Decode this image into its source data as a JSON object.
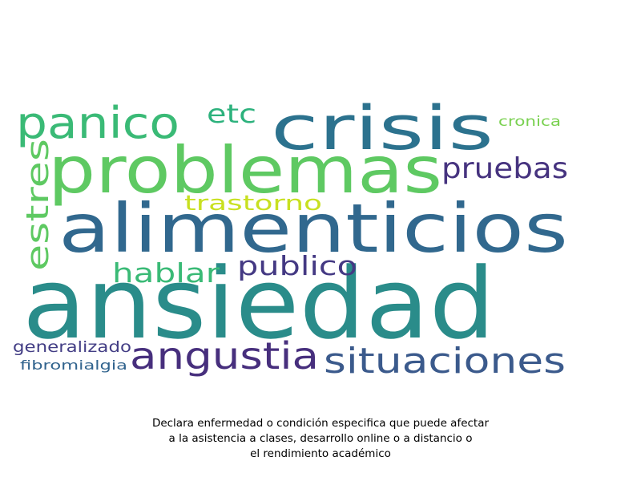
{
  "words": [
    {
      "text": "ansiedad",
      "color": "#2a8c8a"
    },
    {
      "text": "alimenticios",
      "color": "#31688e"
    },
    {
      "text": "problemas",
      "color": "#5ec962"
    },
    {
      "text": "crisis",
      "color": "#2c728e"
    },
    {
      "text": "panico",
      "color": "#3aba76"
    },
    {
      "text": "angustia",
      "color": "#472f7d"
    },
    {
      "text": "situaciones",
      "color": "#3b5a8c"
    },
    {
      "text": "pruebas",
      "color": "#46337f"
    },
    {
      "text": "publico",
      "color": "#443983"
    },
    {
      "text": "hablar",
      "color": "#3aba76"
    },
    {
      "text": "estres",
      "color": "#5ec962"
    },
    {
      "text": "trastorno",
      "color": "#c8e020"
    },
    {
      "text": "etc",
      "color": "#2db27d"
    },
    {
      "text": "cronica",
      "color": "#7ad151"
    },
    {
      "text": "generalizado",
      "color": "#433e85"
    },
    {
      "text": "fibromialgia",
      "color": "#32648e"
    }
  ],
  "caption": {
    "line1": "Declara enfermedad o condición especifica que puede afectar",
    "line2": "a la asistencia a clases, desarrollo online o a distancio o",
    "line3": "el rendimiento académico"
  }
}
